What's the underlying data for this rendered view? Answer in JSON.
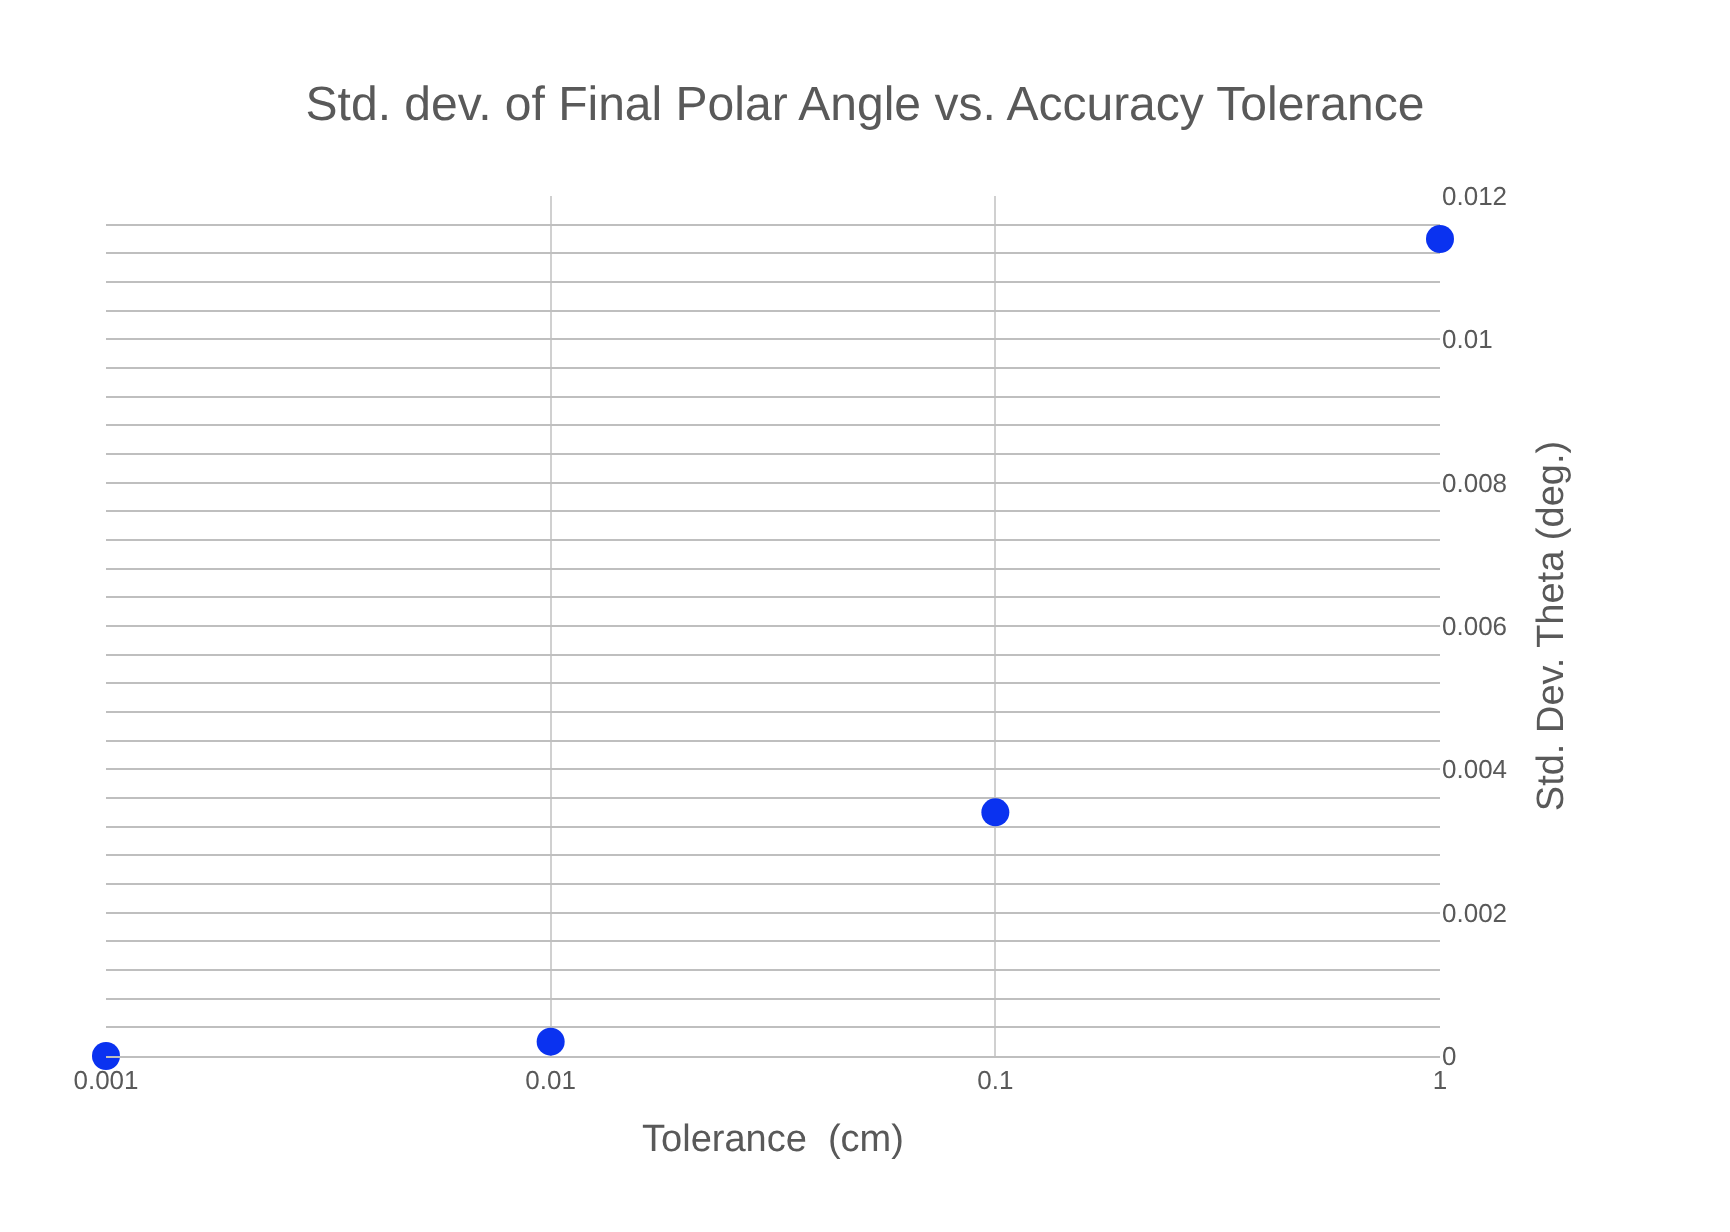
{
  "chart_data": {
    "type": "scatter",
    "title": "Std. dev. of Final Polar Angle vs. Accuracy Tolerance",
    "xlabel": "Tolerance  (cm)",
    "ylabel": "Std. Dev. Theta (deg.)",
    "x": [
      0.001,
      0.01,
      0.1,
      1
    ],
    "series": [
      {
        "color": "#0a32f0",
        "values": [
          0.0,
          0.0002,
          0.0034,
          0.0114
        ]
      }
    ],
    "log": "x",
    "xlim": [
      0.001,
      1
    ],
    "xticks": [
      0.001,
      0.01,
      0.1,
      1
    ],
    "ylim": [
      0,
      0.012
    ],
    "yticks": [
      0,
      {
        "value": 0.0004,
        "label": null
      },
      {
        "value": 0.0008,
        "label": null
      },
      {
        "value": 0.0012,
        "label": null
      },
      {
        "value": 0.0016,
        "label": null
      },
      0.002,
      {
        "value": 0.0024,
        "label": null
      },
      {
        "value": 0.0028,
        "label": null
      },
      {
        "value": 0.0032,
        "label": null
      },
      {
        "value": 0.0036,
        "label": null
      },
      0.004,
      {
        "value": 0.0044,
        "label": null
      },
      {
        "value": 0.0048,
        "label": null
      },
      {
        "value": 0.0052,
        "label": null
      },
      {
        "value": 0.0056,
        "label": null
      },
      0.006,
      {
        "value": 0.0064,
        "label": null
      },
      {
        "value": 0.0068,
        "label": null
      },
      {
        "value": 0.0072,
        "label": null
      },
      {
        "value": 0.0076,
        "label": null
      },
      0.008,
      {
        "value": 0.0084,
        "label": null
      },
      {
        "value": 0.0088,
        "label": null
      },
      {
        "value": 0.0092,
        "label": null
      },
      {
        "value": 0.0096,
        "label": null
      },
      0.01,
      {
        "value": 0.0104,
        "label": null
      },
      {
        "value": 0.0108,
        "label": null
      },
      {
        "value": 0.0112,
        "label": null
      },
      {
        "value": 0.0116,
        "label": null
      },
      0.012
    ],
    "grid": true,
    "marker": "circle"
  }
}
